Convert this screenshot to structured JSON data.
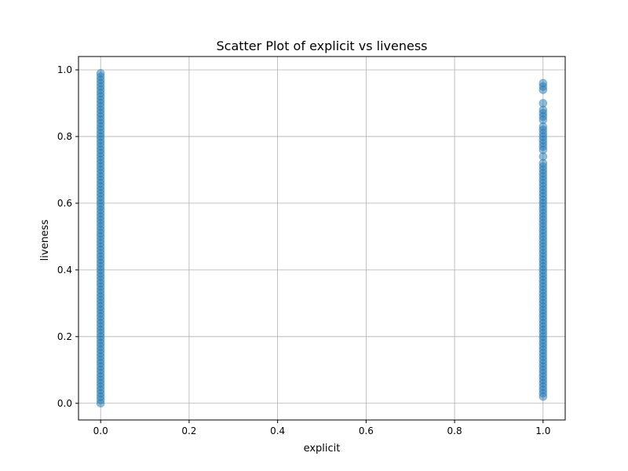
{
  "chart_data": {
    "type": "scatter",
    "title": "Scatter Plot of explicit vs liveness",
    "xlabel": "explicit",
    "ylabel": "liveness",
    "xlim": [
      -0.05,
      1.05
    ],
    "ylim": [
      -0.05,
      1.04
    ],
    "xticks": [
      "0.0",
      "0.2",
      "0.4",
      "0.6",
      "0.8",
      "1.0"
    ],
    "yticks": [
      "0.0",
      "0.2",
      "0.4",
      "0.6",
      "0.8",
      "1.0"
    ],
    "grid": true,
    "marker_color": "#1f77b4",
    "marker_alpha": 0.5,
    "series": [
      {
        "points": [
          [
            0,
            0.0
          ],
          [
            0,
            0.01
          ],
          [
            0,
            0.02
          ],
          [
            0,
            0.03
          ],
          [
            0,
            0.04
          ],
          [
            0,
            0.05
          ],
          [
            0,
            0.06
          ],
          [
            0,
            0.07
          ],
          [
            0,
            0.08
          ],
          [
            0,
            0.09
          ],
          [
            0,
            0.1
          ],
          [
            0,
            0.11
          ],
          [
            0,
            0.12
          ],
          [
            0,
            0.13
          ],
          [
            0,
            0.14
          ],
          [
            0,
            0.15
          ],
          [
            0,
            0.16
          ],
          [
            0,
            0.17
          ],
          [
            0,
            0.18
          ],
          [
            0,
            0.19
          ],
          [
            0,
            0.2
          ],
          [
            0,
            0.21
          ],
          [
            0,
            0.22
          ],
          [
            0,
            0.23
          ],
          [
            0,
            0.24
          ],
          [
            0,
            0.25
          ],
          [
            0,
            0.26
          ],
          [
            0,
            0.27
          ],
          [
            0,
            0.28
          ],
          [
            0,
            0.29
          ],
          [
            0,
            0.3
          ],
          [
            0,
            0.31
          ],
          [
            0,
            0.32
          ],
          [
            0,
            0.33
          ],
          [
            0,
            0.34
          ],
          [
            0,
            0.35
          ],
          [
            0,
            0.36
          ],
          [
            0,
            0.37
          ],
          [
            0,
            0.38
          ],
          [
            0,
            0.39
          ],
          [
            0,
            0.4
          ],
          [
            0,
            0.41
          ],
          [
            0,
            0.42
          ],
          [
            0,
            0.43
          ],
          [
            0,
            0.44
          ],
          [
            0,
            0.45
          ],
          [
            0,
            0.46
          ],
          [
            0,
            0.47
          ],
          [
            0,
            0.48
          ],
          [
            0,
            0.49
          ],
          [
            0,
            0.5
          ],
          [
            0,
            0.51
          ],
          [
            0,
            0.52
          ],
          [
            0,
            0.53
          ],
          [
            0,
            0.54
          ],
          [
            0,
            0.55
          ],
          [
            0,
            0.56
          ],
          [
            0,
            0.57
          ],
          [
            0,
            0.58
          ],
          [
            0,
            0.59
          ],
          [
            0,
            0.6
          ],
          [
            0,
            0.61
          ],
          [
            0,
            0.62
          ],
          [
            0,
            0.63
          ],
          [
            0,
            0.64
          ],
          [
            0,
            0.65
          ],
          [
            0,
            0.66
          ],
          [
            0,
            0.67
          ],
          [
            0,
            0.68
          ],
          [
            0,
            0.69
          ],
          [
            0,
            0.7
          ],
          [
            0,
            0.71
          ],
          [
            0,
            0.72
          ],
          [
            0,
            0.73
          ],
          [
            0,
            0.74
          ],
          [
            0,
            0.75
          ],
          [
            0,
            0.76
          ],
          [
            0,
            0.77
          ],
          [
            0,
            0.78
          ],
          [
            0,
            0.79
          ],
          [
            0,
            0.8
          ],
          [
            0,
            0.81
          ],
          [
            0,
            0.82
          ],
          [
            0,
            0.83
          ],
          [
            0,
            0.84
          ],
          [
            0,
            0.85
          ],
          [
            0,
            0.86
          ],
          [
            0,
            0.87
          ],
          [
            0,
            0.88
          ],
          [
            0,
            0.89
          ],
          [
            0,
            0.9
          ],
          [
            0,
            0.91
          ],
          [
            0,
            0.92
          ],
          [
            0,
            0.93
          ],
          [
            0,
            0.94
          ],
          [
            0,
            0.95
          ],
          [
            0,
            0.96
          ],
          [
            0,
            0.97
          ],
          [
            0,
            0.98
          ],
          [
            0,
            0.99
          ],
          [
            1,
            0.02
          ],
          [
            1,
            0.03
          ],
          [
            1,
            0.04
          ],
          [
            1,
            0.05
          ],
          [
            1,
            0.06
          ],
          [
            1,
            0.07
          ],
          [
            1,
            0.08
          ],
          [
            1,
            0.09
          ],
          [
            1,
            0.1
          ],
          [
            1,
            0.11
          ],
          [
            1,
            0.12
          ],
          [
            1,
            0.13
          ],
          [
            1,
            0.14
          ],
          [
            1,
            0.15
          ],
          [
            1,
            0.16
          ],
          [
            1,
            0.17
          ],
          [
            1,
            0.18
          ],
          [
            1,
            0.19
          ],
          [
            1,
            0.2
          ],
          [
            1,
            0.21
          ],
          [
            1,
            0.22
          ],
          [
            1,
            0.23
          ],
          [
            1,
            0.24
          ],
          [
            1,
            0.25
          ],
          [
            1,
            0.26
          ],
          [
            1,
            0.27
          ],
          [
            1,
            0.28
          ],
          [
            1,
            0.29
          ],
          [
            1,
            0.3
          ],
          [
            1,
            0.31
          ],
          [
            1,
            0.32
          ],
          [
            1,
            0.33
          ],
          [
            1,
            0.34
          ],
          [
            1,
            0.35
          ],
          [
            1,
            0.36
          ],
          [
            1,
            0.37
          ],
          [
            1,
            0.38
          ],
          [
            1,
            0.39
          ],
          [
            1,
            0.4
          ],
          [
            1,
            0.41
          ],
          [
            1,
            0.42
          ],
          [
            1,
            0.43
          ],
          [
            1,
            0.44
          ],
          [
            1,
            0.45
          ],
          [
            1,
            0.46
          ],
          [
            1,
            0.47
          ],
          [
            1,
            0.48
          ],
          [
            1,
            0.49
          ],
          [
            1,
            0.5
          ],
          [
            1,
            0.51
          ],
          [
            1,
            0.52
          ],
          [
            1,
            0.53
          ],
          [
            1,
            0.54
          ],
          [
            1,
            0.55
          ],
          [
            1,
            0.56
          ],
          [
            1,
            0.57
          ],
          [
            1,
            0.58
          ],
          [
            1,
            0.59
          ],
          [
            1,
            0.6
          ],
          [
            1,
            0.61
          ],
          [
            1,
            0.62
          ],
          [
            1,
            0.63
          ],
          [
            1,
            0.64
          ],
          [
            1,
            0.65
          ],
          [
            1,
            0.66
          ],
          [
            1,
            0.67
          ],
          [
            1,
            0.68
          ],
          [
            1,
            0.69
          ],
          [
            1,
            0.7
          ],
          [
            1,
            0.71
          ],
          [
            1,
            0.72
          ],
          [
            1,
            0.74
          ],
          [
            1,
            0.76
          ],
          [
            1,
            0.77
          ],
          [
            1,
            0.78
          ],
          [
            1,
            0.79
          ],
          [
            1,
            0.8
          ],
          [
            1,
            0.81
          ],
          [
            1,
            0.82
          ],
          [
            1,
            0.83
          ],
          [
            1,
            0.85
          ],
          [
            1,
            0.86
          ],
          [
            1,
            0.87
          ],
          [
            1,
            0.88
          ],
          [
            1,
            0.9
          ],
          [
            1,
            0.94
          ],
          [
            1,
            0.95
          ],
          [
            1,
            0.96
          ]
        ]
      }
    ]
  }
}
